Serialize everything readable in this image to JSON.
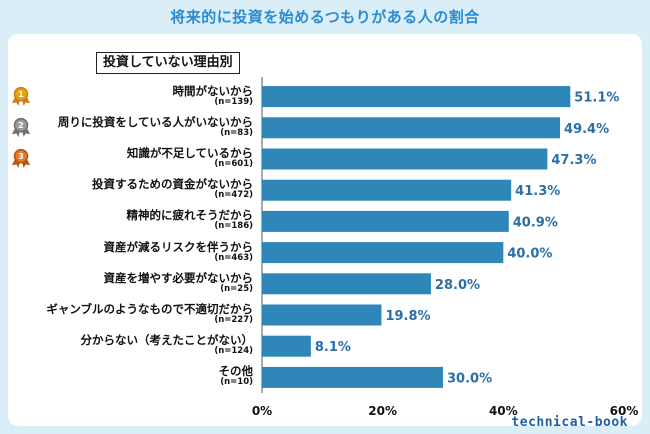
{
  "title": "将来的に投資を始めるつもりがある人の割合",
  "subtitle": "投資していない理由別",
  "logo_text": "technical-book",
  "medals": [
    {
      "rank": "1",
      "color": "#e8a317",
      "ring": "#c7810c"
    },
    {
      "rank": "2",
      "color": "#9a9a9a",
      "ring": "#6f6f6f"
    },
    {
      "rank": "3",
      "color": "#e07a2c",
      "ring": "#b35510"
    }
  ],
  "chart_data": {
    "type": "bar",
    "orientation": "horizontal",
    "categories": [
      "時間がないから",
      "周りに投資をしている人がいないから",
      "知識が不足しているから",
      "投資するための資金がないから",
      "精神的に疲れそうだから",
      "資産が減るリスクを伴うから",
      "資産を増やす必要がないから",
      "ギャンブルのようなもので不適切だから",
      "分からない（考えたことがない）",
      "その他"
    ],
    "sample_sizes": [
      "(n=139)",
      "(n=83)",
      "(n=601)",
      "(n=472)",
      "(n=186)",
      "(n=463)",
      "(n=25)",
      "(n=227)",
      "(n=124)",
      "(n=10)"
    ],
    "values": [
      51.1,
      49.4,
      47.3,
      41.3,
      40.9,
      40.0,
      28.0,
      19.8,
      8.1,
      30.0
    ],
    "value_labels": [
      "51.1%",
      "49.4%",
      "47.3%",
      "41.3%",
      "40.9%",
      "40.0%",
      "28.0%",
      "19.8%",
      "8.1%",
      "30.0%"
    ],
    "xlim": [
      0,
      60
    ],
    "xticks": [
      "0%",
      "20%",
      "40%",
      "60%"
    ],
    "grid": false,
    "bar_color": "#2e86b9"
  }
}
